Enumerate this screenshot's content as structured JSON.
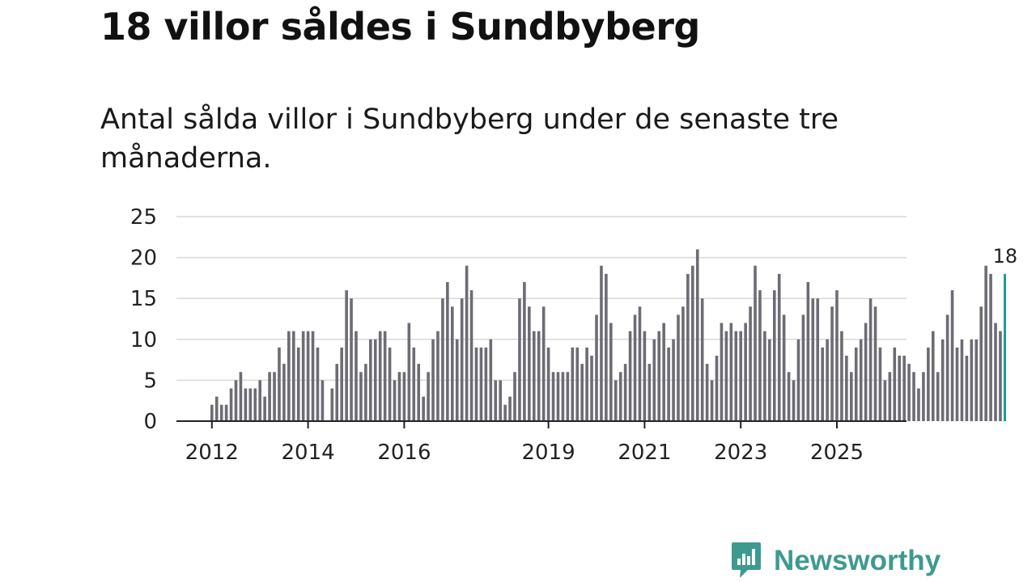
{
  "title": "18 villor såldes i Sundbyberg",
  "subtitle": "Antal sålda villor i Sundbyberg under de senaste tre månaderna.",
  "brand": {
    "name": "Newsworthy",
    "color": "#3e9a8f",
    "icon": "bar-chart-speech-bubble-icon"
  },
  "chart_data": {
    "type": "bar",
    "title": "18 villor såldes i Sundbyberg",
    "xlabel": "",
    "ylabel": "",
    "ylim": [
      0,
      25
    ],
    "y_ticks": [
      0,
      5,
      10,
      15,
      20,
      25
    ],
    "x_tick_labels": [
      "2012",
      "2014",
      "2016",
      "2019",
      "2021",
      "2023",
      "2025"
    ],
    "x_tick_indices": [
      0,
      20,
      40,
      70,
      90,
      110,
      130
    ],
    "bar_color": "#6d6b74",
    "highlight_color": "#1a9e95",
    "highlight_label": "18",
    "values": [
      2,
      3,
      2,
      2,
      4,
      5,
      6,
      4,
      4,
      4,
      5,
      3,
      6,
      6,
      9,
      7,
      11,
      11,
      9,
      11,
      11,
      11,
      9,
      5,
      0,
      4,
      7,
      9,
      16,
      15,
      11,
      6,
      7,
      10,
      10,
      11,
      11,
      9,
      5,
      6,
      6,
      12,
      9,
      7,
      3,
      6,
      10,
      11,
      15,
      17,
      14,
      10,
      15,
      19,
      16,
      9,
      9,
      9,
      10,
      5,
      5,
      2,
      3,
      6,
      15,
      17,
      14,
      11,
      11,
      14,
      9,
      6,
      6,
      6,
      6,
      9,
      9,
      7,
      9,
      8,
      13,
      19,
      18,
      12,
      5,
      6,
      7,
      11,
      13,
      14,
      11,
      7,
      10,
      11,
      12,
      9,
      10,
      13,
      14,
      18,
      19,
      21,
      15,
      7,
      5,
      8,
      12,
      11,
      12,
      11,
      11,
      12,
      14,
      19,
      16,
      11,
      10,
      16,
      18,
      13,
      6,
      5,
      10,
      13,
      17,
      15,
      15,
      9,
      10,
      14,
      16,
      11,
      8,
      6,
      9,
      10,
      12,
      15,
      14,
      9,
      5,
      6,
      9,
      8,
      8,
      7,
      6,
      4,
      6,
      9,
      11,
      6,
      10,
      13,
      16,
      9,
      10,
      8,
      10,
      10,
      14,
      19,
      18,
      12,
      11,
      18
    ]
  }
}
